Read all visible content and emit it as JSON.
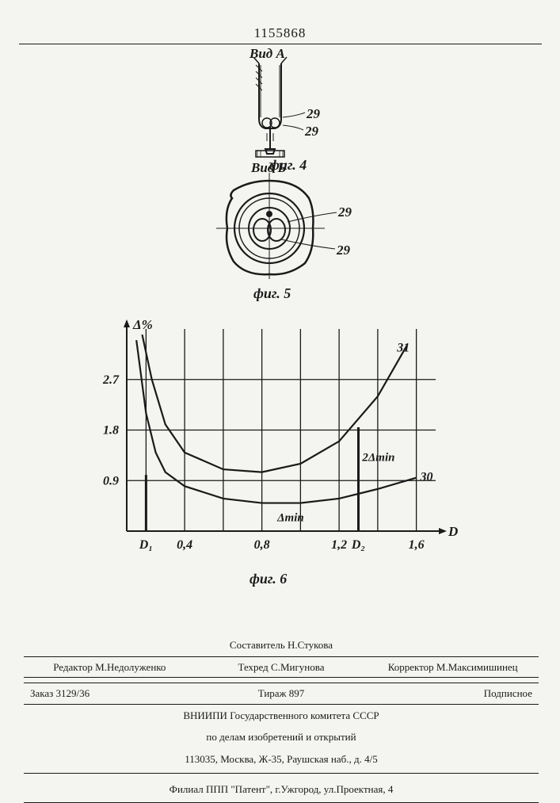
{
  "doc_number": "1155868",
  "fig4": {
    "title": "Вид А",
    "caption": "фиг. 4",
    "callouts": [
      "29",
      "29"
    ]
  },
  "fig5": {
    "title": "Вид Б",
    "caption": "фиг. 5",
    "callouts": [
      "29",
      "29"
    ]
  },
  "chart": {
    "type": "line",
    "caption": "фиг. 6",
    "ylabel": "Δ%",
    "xlabel": "D",
    "x_ticks": [
      0.2,
      0.4,
      0.6,
      0.8,
      1.0,
      1.2,
      1.4,
      1.6
    ],
    "x_tick_labels": [
      "",
      "0,4",
      "",
      "0,8",
      "",
      "1,2",
      "",
      "1,6"
    ],
    "x_special_labels": {
      "D1": 0.2,
      "D2": 1.3
    },
    "y_ticks": [
      0,
      0.9,
      1.8,
      2.7
    ],
    "y_tick_labels": [
      "",
      "0.9",
      "1.8",
      "2.7"
    ],
    "xlim": [
      0.1,
      1.7
    ],
    "ylim": [
      0,
      3.6
    ],
    "grid_color": "#1a1a1a",
    "background_color": "#f4f4f0",
    "line_color": "#1a1a1a",
    "line_width": 2.2,
    "curves": [
      {
        "id": "30",
        "label": "30",
        "annotation": "Δmin",
        "points": [
          [
            0.15,
            3.4
          ],
          [
            0.2,
            2.1
          ],
          [
            0.25,
            1.4
          ],
          [
            0.3,
            1.05
          ],
          [
            0.4,
            0.8
          ],
          [
            0.6,
            0.58
          ],
          [
            0.8,
            0.5
          ],
          [
            1.0,
            0.5
          ],
          [
            1.2,
            0.58
          ],
          [
            1.4,
            0.75
          ],
          [
            1.6,
            0.95
          ]
        ]
      },
      {
        "id": "31",
        "label": "31",
        "annotation": "2Δmin",
        "points": [
          [
            0.18,
            3.5
          ],
          [
            0.23,
            2.7
          ],
          [
            0.3,
            1.9
          ],
          [
            0.4,
            1.4
          ],
          [
            0.6,
            1.1
          ],
          [
            0.8,
            1.05
          ],
          [
            1.0,
            1.2
          ],
          [
            1.2,
            1.6
          ],
          [
            1.4,
            2.4
          ],
          [
            1.55,
            3.3
          ]
        ]
      }
    ],
    "marker_lines": [
      {
        "x": 0.2,
        "y_from": 0,
        "y_to": 1.0
      },
      {
        "x": 1.3,
        "y_from": 0,
        "y_to": 1.85
      }
    ]
  },
  "footer": {
    "line1": {
      "center": "Составитель Н.Стукова"
    },
    "line2": {
      "left": "Редактор М.Недолуженко",
      "center": "Техред С.Мигунова",
      "right": "Корректор М.Максимишинец"
    },
    "line3": {
      "left": "Заказ 3129/36",
      "center": "Тираж 897",
      "right": "Подписное"
    },
    "org1": "ВНИИПИ Государственного комитета СССР",
    "org2": "по делам изобретений и открытий",
    "address": "113035, Москва, Ж-35, Раушская наб., д. 4/5",
    "branch": "Филиал ППП \"Патент\", г.Ужгород, ул.Проектная, 4"
  }
}
